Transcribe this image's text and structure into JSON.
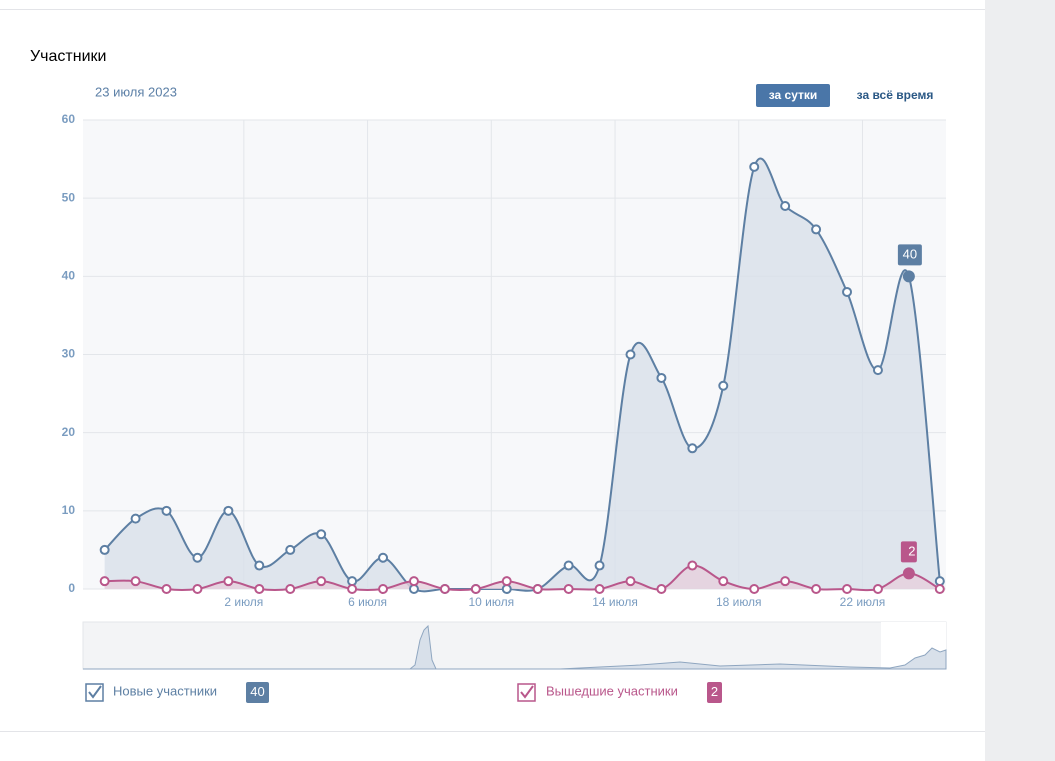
{
  "header": {
    "title": "Участники",
    "date": "23 июля 2023",
    "buttons": [
      "за сутки",
      "за всё время"
    ]
  },
  "chart_data": {
    "type": "line",
    "x": [
      -2.5,
      -1.5,
      -0.5,
      0.5,
      1.5,
      2.5,
      3.5,
      4.5,
      5.5,
      6.5,
      7.5,
      8.5,
      9.5,
      10.5,
      11.5,
      12.5,
      13.5,
      14.5,
      15.5,
      16.5,
      17.5,
      18.5,
      19.5,
      20.5,
      21.5,
      22.5,
      23.5,
      24.5
    ],
    "xlim": [
      -3.2,
      24.7
    ],
    "xticks": [
      {
        "value": 2,
        "label": "2 июля"
      },
      {
        "value": 6,
        "label": "6 июля"
      },
      {
        "value": 10,
        "label": "10 июля"
      },
      {
        "value": 14,
        "label": "14 июля"
      },
      {
        "value": 18,
        "label": "18 июля"
      },
      {
        "value": 22,
        "label": "22 июля"
      }
    ],
    "ylim": [
      0,
      60
    ],
    "yticks": [
      0,
      10,
      20,
      30,
      40,
      50,
      60
    ],
    "grid": true,
    "series": [
      {
        "name": "Новые участники",
        "color": "#5d7fa3",
        "fill": "#d8e0ea",
        "values": [
          5,
          9,
          10,
          4,
          10,
          3,
          5,
          7,
          1,
          4,
          0,
          0,
          0,
          0,
          0,
          3,
          3,
          30,
          27,
          18,
          26,
          54,
          49,
          46,
          38,
          28,
          40,
          1
        ]
      },
      {
        "name": "Вышедшие участники",
        "color": "#b9578b",
        "fill": "#e6cfdc",
        "values": [
          1,
          1,
          0,
          0,
          1,
          0,
          0,
          1,
          0,
          0,
          1,
          0,
          0,
          1,
          0,
          0,
          0,
          1,
          0,
          3,
          1,
          0,
          1,
          0,
          0,
          0,
          2,
          0
        ]
      }
    ]
  }
}
